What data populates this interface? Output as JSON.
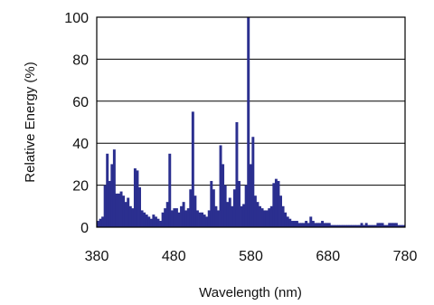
{
  "chart_data": {
    "type": "bar",
    "title": "",
    "xlabel": "Wavelength (nm)",
    "ylabel": "Relative Energy (%)",
    "xlim": [
      380,
      780
    ],
    "ylim": [
      0,
      100
    ],
    "grid": true,
    "legend": "none",
    "bar_color": "#2b2f8f",
    "x_ticks": [
      "380",
      "480",
      "580",
      "680",
      "780"
    ],
    "y_ticks": [
      "0",
      "20",
      "40",
      "60",
      "80",
      "100"
    ],
    "x": [
      380,
      383,
      386,
      389,
      392,
      395,
      398,
      401,
      404,
      407,
      410,
      413,
      416,
      419,
      422,
      425,
      428,
      431,
      434,
      437,
      440,
      443,
      446,
      449,
      452,
      455,
      458,
      461,
      464,
      467,
      470,
      473,
      476,
      479,
      482,
      485,
      488,
      491,
      494,
      497,
      500,
      503,
      506,
      509,
      512,
      515,
      518,
      521,
      524,
      527,
      530,
      533,
      536,
      539,
      542,
      545,
      548,
      551,
      554,
      557,
      560,
      563,
      566,
      569,
      572,
      575,
      578,
      581,
      584,
      587,
      590,
      593,
      596,
      599,
      602,
      605,
      608,
      611,
      614,
      617,
      620,
      623,
      626,
      629,
      632,
      635,
      638,
      641,
      644,
      647,
      650,
      653,
      656,
      659,
      662,
      665,
      668,
      671,
      674,
      677,
      680,
      683,
      686,
      689,
      692,
      695,
      698,
      701,
      704,
      707,
      710,
      713,
      716,
      719,
      722,
      725,
      728,
      731,
      734,
      737,
      740,
      743,
      746,
      749,
      752,
      755,
      758,
      761,
      764,
      767,
      770,
      773,
      776,
      779
    ],
    "values": [
      3,
      4,
      5,
      20,
      35,
      22,
      30,
      37,
      16,
      16,
      17,
      15,
      12,
      14,
      10,
      9,
      28,
      27,
      19,
      8,
      7,
      6,
      5,
      4,
      6,
      5,
      4,
      3,
      7,
      9,
      12,
      35,
      8,
      9,
      9,
      7,
      10,
      12,
      8,
      9,
      18,
      55,
      15,
      8,
      7,
      7,
      6,
      5,
      8,
      22,
      18,
      10,
      8,
      39,
      30,
      20,
      12,
      14,
      10,
      18,
      50,
      22,
      10,
      11,
      20,
      100,
      30,
      43,
      15,
      12,
      10,
      9,
      8,
      8,
      9,
      10,
      21,
      23,
      22,
      15,
      10,
      7,
      5,
      4,
      3,
      3,
      3,
      2,
      2,
      2,
      3,
      2,
      5,
      3,
      2,
      2,
      2,
      3,
      2,
      2,
      2,
      1,
      1,
      1,
      1,
      1,
      1,
      1,
      1,
      1,
      1,
      1,
      1,
      1,
      2,
      1,
      2,
      1,
      1,
      1,
      1,
      2,
      2,
      2,
      1,
      1,
      2,
      2,
      2,
      2,
      1,
      1,
      1,
      1
    ]
  }
}
